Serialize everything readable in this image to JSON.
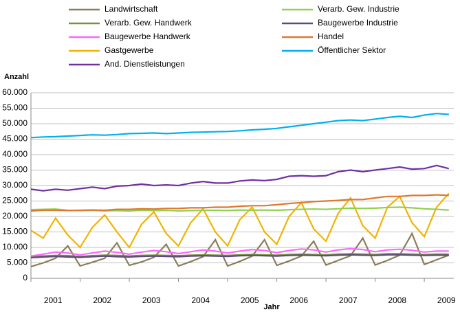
{
  "chart_data": {
    "type": "line",
    "y_label": "Anzahl",
    "x_label": "Jahr",
    "x": [
      2001,
      2001.25,
      2001.5,
      2001.75,
      2002,
      2002.25,
      2002.5,
      2002.75,
      2003,
      2003.25,
      2003.5,
      2003.75,
      2004,
      2004.25,
      2004.5,
      2004.75,
      2005,
      2005.25,
      2005.5,
      2005.75,
      2006,
      2006.25,
      2006.5,
      2006.75,
      2007,
      2007.25,
      2007.5,
      2007.75,
      2008,
      2008.25,
      2008.5,
      2008.75,
      2009,
      2009.25,
      2009.5
    ],
    "xlim": [
      2001,
      2009.6
    ],
    "xticks": [
      2001,
      2002,
      2003,
      2004,
      2005,
      2006,
      2007,
      2008,
      2009
    ],
    "ylim": [
      0,
      60000
    ],
    "yticks": [
      0,
      {
        "value": 5000,
        "label": "5.000"
      },
      {
        "value": 10000,
        "label": "10.000"
      },
      {
        "value": 15000,
        "label": "15.000"
      },
      {
        "value": 20000,
        "label": "20.000"
      },
      {
        "value": 25000,
        "label": "25.000"
      },
      {
        "value": 30000,
        "label": "30.000"
      },
      {
        "value": 35000,
        "label": "35.000"
      },
      {
        "value": 40000,
        "label": "40.000"
      },
      {
        "value": 45000,
        "label": "45.000"
      },
      {
        "value": 50000,
        "label": "50.000"
      },
      {
        "value": 55000,
        "label": "55.000"
      },
      {
        "value": 60000,
        "label": "60.000"
      }
    ],
    "grid": true,
    "series": [
      {
        "name": "Landwirtschaft",
        "color": "#8b7d5a",
        "values": [
          3800,
          5000,
          6500,
          10500,
          4000,
          5200,
          6500,
          11500,
          4200,
          5300,
          6800,
          11000,
          4000,
          5400,
          7000,
          12500,
          4000,
          5500,
          7200,
          12500,
          4200,
          5600,
          7200,
          12000,
          4300,
          5800,
          7300,
          13000,
          4300,
          5800,
          7500,
          14500,
          4500,
          6000,
          7500
        ]
      },
      {
        "name": "Verarb. Gew. Handwerk",
        "color": "#76923c",
        "values": [
          7000,
          7200,
          7400,
          7300,
          7100,
          7300,
          7500,
          7400,
          7200,
          7400,
          7500,
          7400,
          7300,
          7500,
          7600,
          7500,
          7400,
          7600,
          7700,
          7600,
          7500,
          7700,
          7800,
          7700,
          7600,
          7800,
          7900,
          7800,
          7700,
          7900,
          7900,
          7800,
          7700,
          7800,
          7800
        ]
      },
      {
        "name": "Baugewerbe Handwerk",
        "color": "#ff66ff",
        "values": [
          7200,
          7800,
          8500,
          8200,
          7600,
          8200,
          8800,
          8400,
          7800,
          8500,
          9000,
          8600,
          8000,
          8600,
          9200,
          8800,
          8200,
          8800,
          9300,
          9000,
          8300,
          9000,
          9500,
          9200,
          8500,
          9200,
          9600,
          9300,
          8600,
          9200,
          9400,
          9100,
          8500,
          8800,
          8800
        ]
      },
      {
        "name": "Gastgewerbe",
        "color": "#f0b400",
        "values": [
          15500,
          13000,
          19500,
          14000,
          10000,
          16500,
          20500,
          15000,
          10000,
          17500,
          21500,
          14500,
          10500,
          18000,
          22500,
          15000,
          10500,
          19000,
          23000,
          15000,
          11000,
          20000,
          24500,
          16000,
          12000,
          21000,
          26000,
          17000,
          13000,
          23000,
          26500,
          18000,
          13500,
          23000,
          27500
        ]
      },
      {
        "name": "And. Dienstleistungen",
        "color": "#7030a0",
        "values": [
          28800,
          28300,
          28800,
          28500,
          29000,
          29500,
          29000,
          29800,
          30000,
          30500,
          30000,
          30200,
          30000,
          30800,
          31300,
          30800,
          30800,
          31500,
          31800,
          31600,
          32000,
          33000,
          33200,
          33000,
          33200,
          34500,
          35000,
          34500,
          35000,
          35500,
          36000,
          35300,
          35500,
          36500,
          35500
        ]
      },
      {
        "name": "Verarb. Gew. Industrie",
        "color": "#92d050",
        "values": [
          22200,
          22300,
          22400,
          22000,
          21900,
          22000,
          21800,
          21900,
          21800,
          22000,
          21900,
          22000,
          21800,
          21900,
          22000,
          22000,
          21900,
          22100,
          22000,
          22100,
          22000,
          22200,
          22300,
          22400,
          22300,
          22500,
          22700,
          22600,
          22700,
          22900,
          23000,
          22800,
          22500,
          22300,
          22100
        ]
      },
      {
        "name": "Baugewerbe Industrie",
        "color": "#604a7b",
        "values": [
          6700,
          6900,
          7100,
          6900,
          6800,
          7000,
          7200,
          7000,
          6900,
          7100,
          7200,
          7100,
          7000,
          7200,
          7300,
          7200,
          7100,
          7300,
          7400,
          7300,
          7200,
          7400,
          7500,
          7400,
          7300,
          7500,
          7600,
          7500,
          7400,
          7600,
          7600,
          7500,
          7400,
          7500,
          7500
        ]
      },
      {
        "name": "Handel",
        "color": "#e0782d",
        "values": [
          21800,
          22000,
          22000,
          21900,
          22000,
          22100,
          22000,
          22300,
          22300,
          22500,
          22400,
          22600,
          22600,
          22800,
          22800,
          23000,
          23000,
          23300,
          23500,
          23500,
          23800,
          24200,
          24500,
          24800,
          25000,
          25200,
          25500,
          25500,
          26000,
          26500,
          26500,
          26800,
          26800,
          27000,
          26800
        ]
      },
      {
        "name": "Öffentlicher Sektor",
        "color": "#00b0f0",
        "values": [
          45500,
          45700,
          45800,
          46000,
          46200,
          46400,
          46300,
          46500,
          46800,
          46900,
          47000,
          46800,
          47000,
          47200,
          47300,
          47400,
          47500,
          47700,
          48000,
          48200,
          48500,
          49000,
          49500,
          50000,
          50500,
          51000,
          51200,
          51000,
          51500,
          52000,
          52400,
          52000,
          52800,
          53300,
          53000
        ]
      }
    ]
  }
}
